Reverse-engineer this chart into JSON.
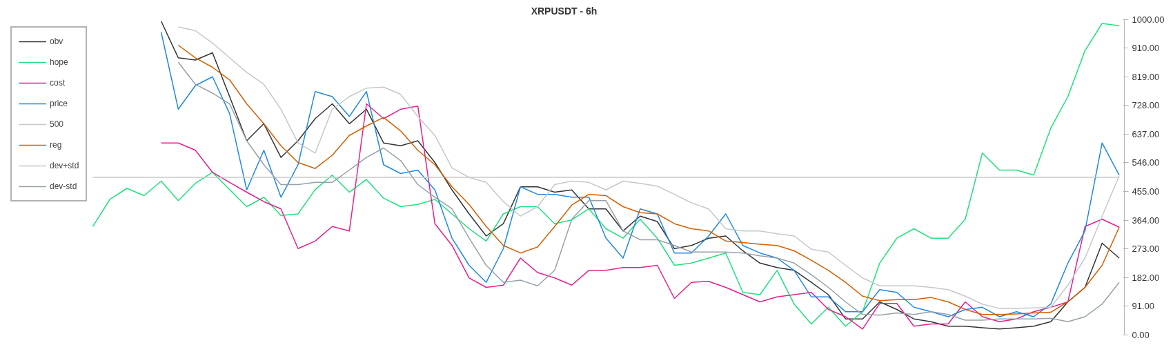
{
  "chart_data": {
    "type": "line",
    "title": "XRPUSDT - 6h",
    "categories": [
      null,
      null,
      null,
      null,
      null,
      null,
      null,
      null,
      null,
      null,
      null,
      null,
      null,
      null,
      null,
      null,
      null,
      null,
      null,
      null,
      null,
      null,
      null,
      null,
      null,
      null,
      null,
      null,
      null,
      null,
      null,
      null,
      null,
      null,
      null,
      null,
      null,
      null,
      null,
      null,
      null,
      null,
      null,
      null,
      null,
      null,
      null,
      null,
      null,
      null,
      null,
      null,
      null,
      null,
      null,
      null,
      null,
      null,
      null,
      null,
      null
    ],
    "series": [
      {
        "name": "obv",
        "color": "#333333",
        "values": [
          null,
          null,
          null,
          null,
          995,
          879,
          872,
          895,
          756,
          616,
          670,
          563,
          616,
          686,
          733,
          670,
          716,
          609,
          600,
          616,
          547,
          460,
          384,
          314,
          353,
          470,
          470,
          453,
          460,
          400,
          400,
          330,
          377,
          360,
          274,
          284,
          307,
          314,
          267,
          228,
          214,
          205,
          167,
          128,
          51,
          51,
          105,
          81,
          51,
          42,
          28,
          28,
          23,
          19,
          23,
          28,
          42,
          105,
          151,
          291,
          244
        ]
      },
      {
        "name": "hope",
        "color": "#1de27a",
        "values": [
          344,
          430,
          465,
          442,
          488,
          426,
          481,
          516,
          461,
          407,
          437,
          379,
          384,
          461,
          507,
          453,
          493,
          434,
          407,
          414,
          430,
          384,
          337,
          298,
          384,
          407,
          407,
          353,
          365,
          400,
          337,
          307,
          367,
          307,
          221,
          228,
          244,
          260,
          135,
          128,
          205,
          98,
          35,
          88,
          28,
          74,
          228,
          307,
          337,
          307,
          307,
          367,
          577,
          523,
          523,
          507,
          656,
          756,
          902,
          988,
          981
        ]
      },
      {
        "name": "cost",
        "color": "#e91e8c",
        "values": [
          null,
          null,
          null,
          null,
          609,
          609,
          586,
          516,
          484,
          453,
          423,
          400,
          274,
          298,
          344,
          330,
          733,
          686,
          716,
          726,
          353,
          284,
          181,
          151,
          158,
          244,
          198,
          181,
          158,
          205,
          205,
          214,
          214,
          221,
          116,
          167,
          170,
          151,
          128,
          105,
          121,
          128,
          135,
          81,
          58,
          19,
          100,
          100,
          28,
          35,
          35,
          105,
          58,
          42,
          51,
          74,
          88,
          105,
          344,
          367,
          342
        ]
      },
      {
        "name": "price",
        "color": "#1e88e5",
        "values": [
          null,
          null,
          null,
          null,
          960,
          716,
          791,
          819,
          702,
          460,
          586,
          437,
          540,
          772,
          756,
          693,
          772,
          540,
          512,
          523,
          460,
          307,
          221,
          167,
          274,
          470,
          446,
          446,
          437,
          437,
          307,
          244,
          400,
          384,
          260,
          260,
          314,
          384,
          284,
          260,
          244,
          205,
          121,
          121,
          74,
          74,
          144,
          135,
          88,
          74,
          58,
          81,
          88,
          58,
          74,
          58,
          98,
          228,
          330,
          609,
          507
        ]
      },
      {
        "name": "500",
        "color": "#c8c8c8",
        "values": [
          500,
          500,
          500,
          500,
          500,
          500,
          500,
          500,
          500,
          500,
          500,
          500,
          500,
          500,
          500,
          500,
          500,
          500,
          500,
          500,
          500,
          500,
          500,
          500,
          500,
          500,
          500,
          500,
          500,
          500,
          500,
          500,
          500,
          500,
          500,
          500,
          500,
          500,
          500,
          500,
          500,
          500,
          500,
          500,
          500,
          500,
          500,
          500,
          500,
          500,
          500,
          500,
          500,
          500,
          500,
          500,
          500,
          500,
          500,
          500,
          500
        ]
      },
      {
        "name": "reg",
        "color": "#d35f00",
        "values": [
          null,
          null,
          null,
          null,
          null,
          919,
          879,
          849,
          809,
          733,
          670,
          600,
          547,
          528,
          570,
          633,
          663,
          690,
          647,
          586,
          540,
          470,
          414,
          344,
          284,
          260,
          279,
          344,
          412,
          446,
          442,
          407,
          388,
          384,
          353,
          337,
          330,
          298,
          293,
          288,
          284,
          267,
          237,
          205,
          167,
          123,
          109,
          112,
          112,
          119,
          105,
          81,
          65,
          65,
          67,
          70,
          72,
          105,
          151,
          221,
          342
        ]
      },
      {
        "name": "dev+std",
        "color": "#c4c8cc",
        "values": [
          null,
          null,
          null,
          null,
          null,
          977,
          965,
          926,
          879,
          833,
          795,
          716,
          609,
          577,
          716,
          756,
          783,
          786,
          763,
          693,
          633,
          530,
          500,
          484,
          423,
          377,
          407,
          477,
          488,
          484,
          460,
          488,
          481,
          472,
          446,
          419,
          400,
          337,
          330,
          330,
          321,
          314,
          272,
          263,
          221,
          181,
          156,
          156,
          156,
          151,
          144,
          123,
          98,
          84,
          84,
          86,
          88,
          158,
          244,
          377,
          505
        ]
      },
      {
        "name": "dev-std",
        "color": "#97a0a8",
        "values": [
          null,
          null,
          null,
          null,
          null,
          865,
          795,
          767,
          733,
          616,
          540,
          477,
          477,
          484,
          484,
          523,
          563,
          593,
          553,
          477,
          437,
          400,
          307,
          221,
          167,
          174,
          156,
          205,
          367,
          426,
          426,
          330,
          302,
          302,
          284,
          263,
          263,
          263,
          260,
          251,
          244,
          228,
          191,
          151,
          105,
          65,
          63,
          70,
          65,
          74,
          65,
          47,
          47,
          51,
          51,
          51,
          53,
          42,
          58,
          98,
          167
        ]
      }
    ],
    "ylim": [
      0,
      1000
    ],
    "yticks": [
      {
        "value": 0,
        "label": "0.00"
      },
      {
        "value": 91,
        "label": "91.00"
      },
      {
        "value": 182,
        "label": "182.00"
      },
      {
        "value": 273,
        "label": "273.00"
      },
      {
        "value": 364,
        "label": "364.00"
      },
      {
        "value": 455,
        "label": "455.00"
      },
      {
        "value": 546,
        "label": "546.00"
      },
      {
        "value": 637,
        "label": "637.00"
      },
      {
        "value": 728,
        "label": "728.00"
      },
      {
        "value": 819,
        "label": "819.00"
      },
      {
        "value": 910,
        "label": "910.00"
      },
      {
        "value": 1000,
        "label": "1000.00"
      }
    ],
    "tick_labels": "y",
    "grid": false,
    "legend": "top left",
    "marker": "none",
    "line_style": "solid"
  }
}
